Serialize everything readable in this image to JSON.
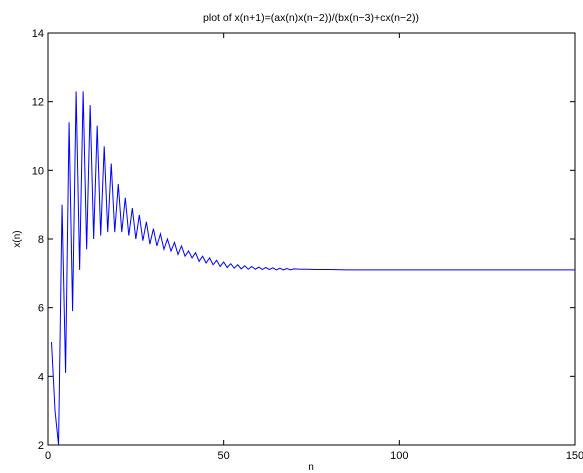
{
  "chart_data": {
    "type": "line",
    "title": "plot of x(n+1)=(ax(n)x(n−2))/(bx(n−3)+cx(n−2))",
    "xlabel": "n",
    "ylabel": "x(n)",
    "xlim": [
      0,
      150
    ],
    "ylim": [
      2,
      14
    ],
    "xticks": [
      0,
      50,
      100,
      150
    ],
    "yticks": [
      2,
      4,
      6,
      8,
      10,
      12,
      14
    ],
    "xtick_labels": [
      "0",
      "50",
      "100",
      "150"
    ],
    "ytick_labels": [
      "2",
      "4",
      "6",
      "8",
      "10",
      "12",
      "14"
    ],
    "grid": false,
    "legend": "none",
    "series": [
      {
        "color": "#0000ff",
        "x": [
          1,
          2,
          3,
          4,
          5,
          6,
          7,
          8,
          9,
          10,
          11,
          12,
          13,
          14,
          15,
          16,
          17,
          18,
          19,
          20,
          21,
          22,
          23,
          24,
          25,
          26,
          27,
          28,
          29,
          30,
          31,
          32,
          33,
          34,
          35,
          36,
          37,
          38,
          39,
          40,
          41,
          42,
          43,
          44,
          45,
          46,
          47,
          48,
          49,
          50,
          51,
          52,
          53,
          54,
          55,
          56,
          57,
          58,
          59,
          60,
          61,
          62,
          63,
          64,
          65,
          66,
          67,
          68,
          69,
          70,
          72,
          74,
          76,
          78,
          80,
          85,
          90,
          95,
          100,
          110,
          120,
          130,
          140,
          150
        ],
        "y": [
          5.0,
          3.0,
          2.0,
          9.0,
          4.1,
          11.4,
          5.9,
          12.3,
          7.1,
          12.3,
          7.7,
          11.9,
          8.0,
          11.3,
          8.1,
          10.7,
          8.2,
          10.2,
          8.2,
          9.6,
          8.2,
          9.2,
          8.1,
          8.9,
          8.0,
          8.7,
          7.95,
          8.5,
          7.85,
          8.3,
          7.8,
          8.15,
          7.7,
          8.0,
          7.65,
          7.9,
          7.55,
          7.8,
          7.5,
          7.65,
          7.45,
          7.6,
          7.35,
          7.5,
          7.3,
          7.45,
          7.25,
          7.38,
          7.2,
          7.33,
          7.17,
          7.28,
          7.15,
          7.25,
          7.13,
          7.22,
          7.12,
          7.2,
          7.12,
          7.18,
          7.11,
          7.17,
          7.11,
          7.16,
          7.1,
          7.15,
          7.1,
          7.14,
          7.1,
          7.13,
          7.12,
          7.12,
          7.11,
          7.11,
          7.11,
          7.1,
          7.1,
          7.1,
          7.1,
          7.1,
          7.1,
          7.1,
          7.1,
          7.1
        ]
      }
    ]
  }
}
